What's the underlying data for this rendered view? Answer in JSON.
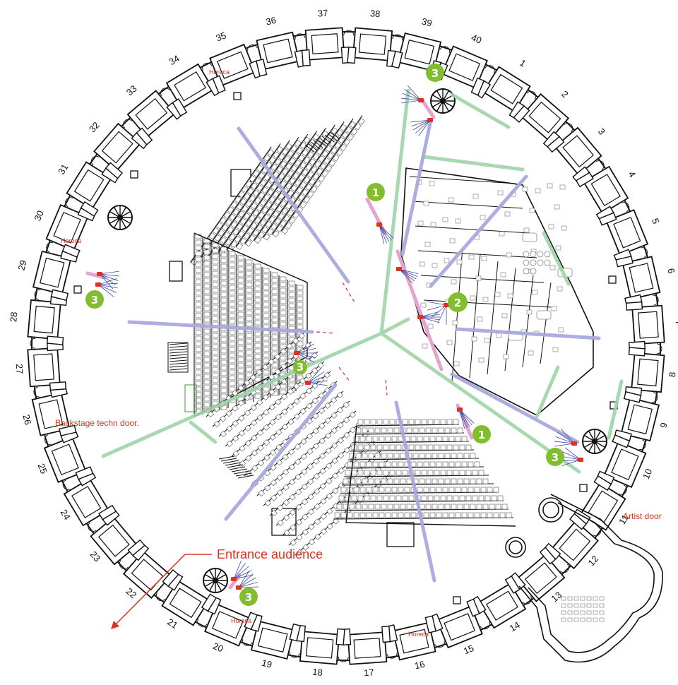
{
  "bay_numbers": [
    "1",
    "2",
    "3",
    "4",
    "5",
    "6",
    "7",
    "8",
    "9",
    "10",
    "11",
    "12",
    "13",
    "14",
    "15",
    "16",
    "17",
    "18",
    "19",
    "20",
    "21",
    "22",
    "23",
    "24",
    "25",
    "26",
    "27",
    "28",
    "29",
    "30",
    "31",
    "32",
    "33",
    "34",
    "35",
    "36",
    "37",
    "38",
    "39",
    "40"
  ],
  "labels": {
    "horeca": "Horeca",
    "backstage": "Backstage techn door.",
    "artist": "Artist door",
    "entrance": "Entrance audience"
  },
  "badges": {
    "one": "1",
    "two": "2",
    "three": "3"
  },
  "colors": {
    "wall": "#111111",
    "sightline_green": "#9fd4a8",
    "axis_purple": "#a9a9de",
    "camera_pink": "#e6a3cf",
    "badge_green": "#82bd2e",
    "label_red": "#e0301e",
    "seat_outline": "#444444"
  }
}
